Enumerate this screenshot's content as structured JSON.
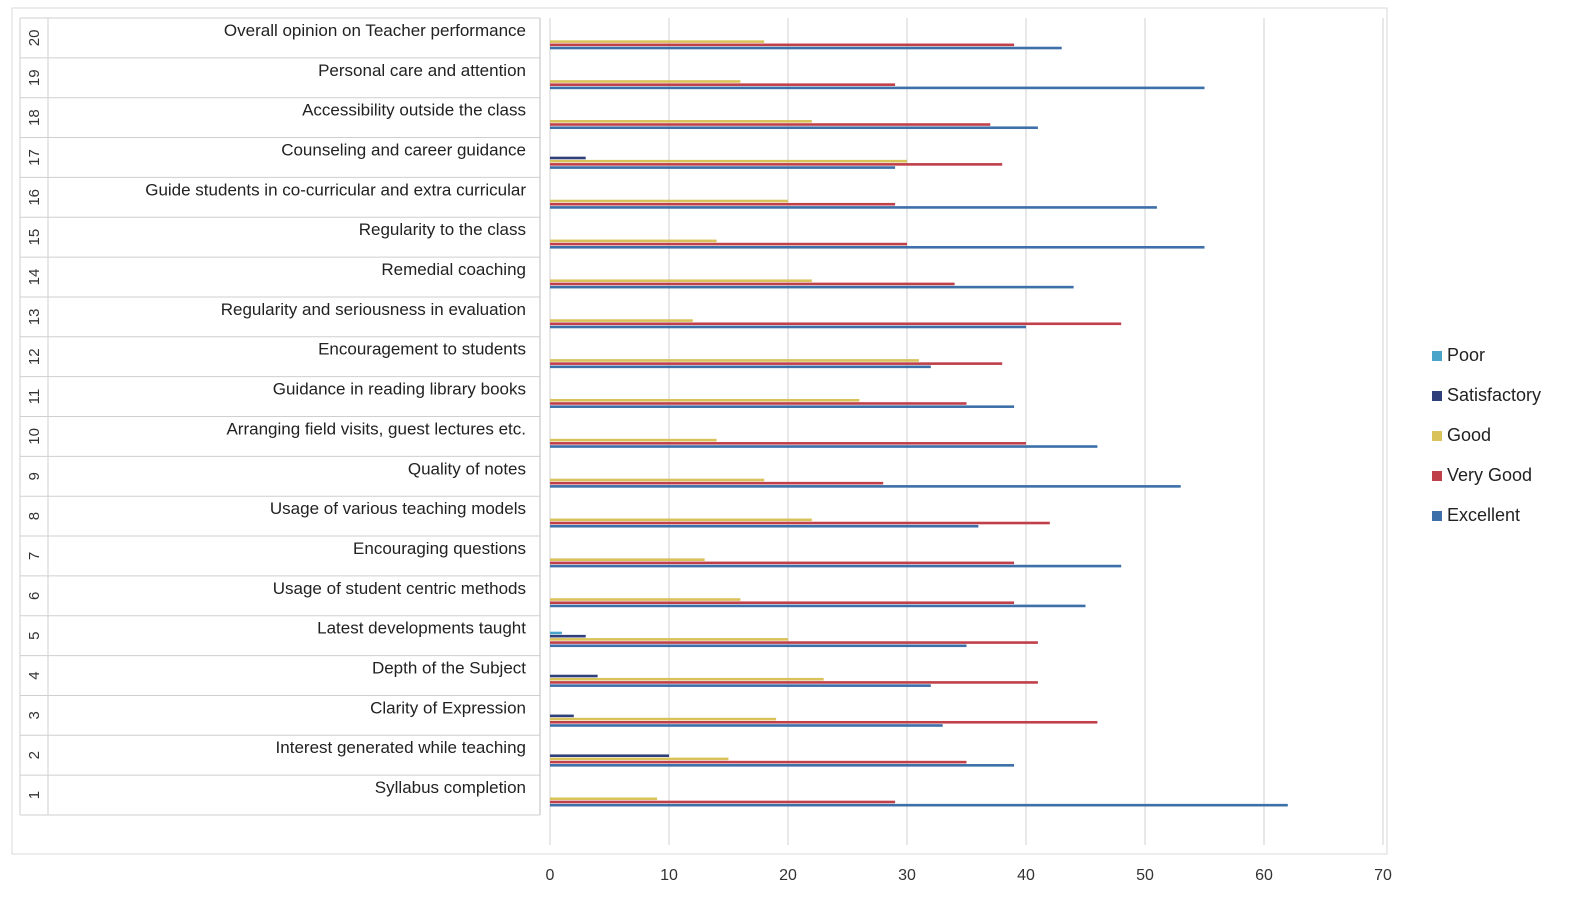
{
  "chart_data": {
    "type": "bar",
    "orientation": "horizontal",
    "categories": [
      {
        "num": "1",
        "label": "Syllabus completion"
      },
      {
        "num": "2",
        "label": "Interest generated while teaching"
      },
      {
        "num": "3",
        "label": "Clarity of Expression"
      },
      {
        "num": "4",
        "label": "Depth of the Subject"
      },
      {
        "num": "5",
        "label": "Latest developments taught"
      },
      {
        "num": "6",
        "label": "Usage of student centric methods"
      },
      {
        "num": "7",
        "label": "Encouraging questions"
      },
      {
        "num": "8",
        "label": "Usage of various teaching models"
      },
      {
        "num": "9",
        "label": "Quality of notes"
      },
      {
        "num": "10",
        "label": "Arranging field visits, guest lectures etc."
      },
      {
        "num": "11",
        "label": "Guidance in reading library books"
      },
      {
        "num": "12",
        "label": "Encouragement to students"
      },
      {
        "num": "13",
        "label": "Regularity and seriousness in evaluation"
      },
      {
        "num": "14",
        "label": "Remedial coaching"
      },
      {
        "num": "15",
        "label": "Regularity to the class"
      },
      {
        "num": "16",
        "label": "Guide students in co-curricular and extra curricular"
      },
      {
        "num": "17",
        "label": "Counseling and career guidance"
      },
      {
        "num": "18",
        "label": "Accessibility outside the class"
      },
      {
        "num": "19",
        "label": "Personal care and attention"
      },
      {
        "num": "20",
        "label": "Overall opinion on Teacher performance"
      }
    ],
    "series": [
      {
        "name": "Excellent",
        "color": "#3d6fa8",
        "values": [
          62,
          39,
          33,
          32,
          35,
          45,
          48,
          36,
          53,
          46,
          39,
          32,
          40,
          44,
          55,
          51,
          29,
          41,
          55,
          43
        ]
      },
      {
        "name": "Very Good",
        "color": "#c0404a",
        "values": [
          29,
          35,
          46,
          41,
          41,
          39,
          39,
          42,
          28,
          40,
          35,
          38,
          48,
          34,
          30,
          29,
          38,
          37,
          29,
          39
        ]
      },
      {
        "name": "Good",
        "color": "#d9c25a",
        "values": [
          9,
          15,
          19,
          23,
          20,
          16,
          13,
          22,
          18,
          14,
          26,
          31,
          12,
          22,
          14,
          20,
          30,
          22,
          16,
          18
        ]
      },
      {
        "name": "Satisfactory",
        "color": "#2f3f7a",
        "values": [
          0,
          10,
          2,
          4,
          3,
          0,
          0,
          0,
          0,
          0,
          0,
          0,
          0,
          0,
          0,
          0,
          3,
          0,
          0,
          0
        ]
      },
      {
        "name": "Poor",
        "color": "#4aa3c9",
        "values": [
          0,
          0,
          0,
          0,
          1,
          0,
          0,
          0,
          0,
          0,
          0,
          0,
          0,
          0,
          0,
          0,
          0,
          0,
          0,
          0
        ]
      }
    ],
    "legend_order": [
      "Poor",
      "Satisfactory",
      "Good",
      "Very Good",
      "Excellent"
    ],
    "xlim": [
      0,
      70
    ],
    "xticks": [
      0,
      10,
      20,
      30,
      40,
      50,
      60,
      70
    ],
    "title": "",
    "xlabel": "",
    "ylabel": "",
    "grid": "vertical",
    "legend_position": "right"
  }
}
